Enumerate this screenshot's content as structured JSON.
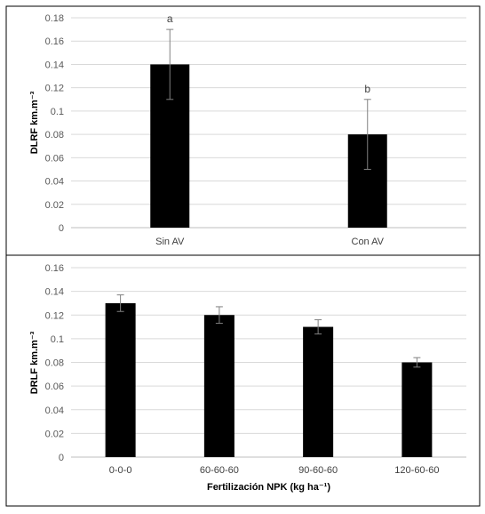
{
  "chart_data": [
    {
      "type": "bar",
      "categories": [
        "Sin AV",
        "Con AV"
      ],
      "values": [
        0.14,
        0.08
      ],
      "errors": [
        0.03,
        0.03
      ],
      "annotations": [
        "a",
        "b"
      ],
      "title": "",
      "xlabel": "",
      "ylabel": "DLRF km.m⁻³",
      "ylim": [
        0,
        0.18
      ],
      "yticks": [
        "0.18",
        "0.16",
        "0.14",
        "0.12",
        "0.1",
        "0.08",
        "0.06",
        "0.04",
        "0.02",
        "0"
      ],
      "grid": true,
      "bar_color": "#000000"
    },
    {
      "type": "bar",
      "categories": [
        "0-0-0",
        "60-60-60",
        "90-60-60",
        "120-60-60"
      ],
      "values": [
        0.13,
        0.12,
        0.11,
        0.08
      ],
      "errors": [
        0.007,
        0.007,
        0.006,
        0.004
      ],
      "annotations": [],
      "title": "",
      "xlabel": "Fertilización NPK (kg ha⁻¹)",
      "ylabel": "DRLF km.m⁻³",
      "ylim": [
        0,
        0.16
      ],
      "yticks": [
        "0.16",
        "0.14",
        "0.12",
        "0.1",
        "0.08",
        "0.06",
        "0.04",
        "0.02",
        "0"
      ],
      "grid": true,
      "bar_color": "#000000"
    }
  ]
}
